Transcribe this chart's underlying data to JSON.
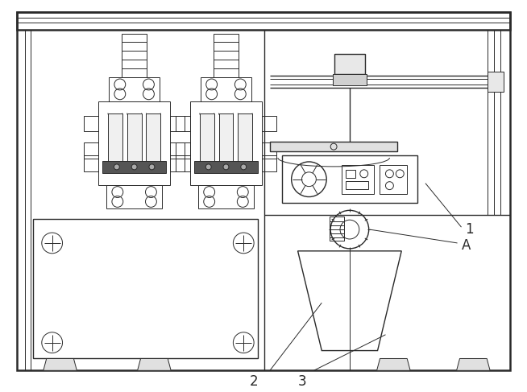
{
  "bg_color": "#ffffff",
  "line_color": "#2a2a2a",
  "line_width": 1.2,
  "label_fontsize": 12,
  "figsize": [
    6.54,
    4.87
  ],
  "dpi": 100
}
